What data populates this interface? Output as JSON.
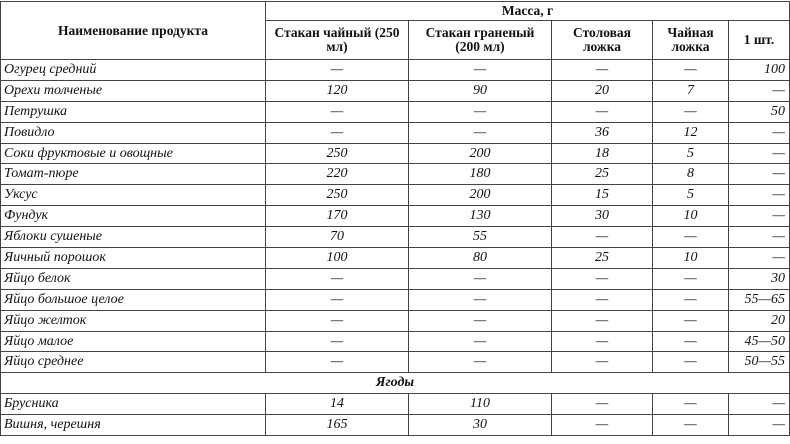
{
  "header": {
    "product_col": "Наименование продукта",
    "mass_group": "Масса, г",
    "columns": [
      "Стакан чайный (250 мл)",
      "Стакан граненый (200 мл)",
      "Столовая ложка",
      "Чайная ложка",
      "1 шт."
    ]
  },
  "rows": [
    {
      "name": "Огурец средний",
      "values": [
        "—",
        "—",
        "—",
        "—",
        "100"
      ]
    },
    {
      "name": "Орехи толченые",
      "values": [
        "120",
        "90",
        "20",
        "7",
        "—"
      ]
    },
    {
      "name": "Петрушка",
      "values": [
        "—",
        "—",
        "—",
        "—",
        "50"
      ]
    },
    {
      "name": "Повидло",
      "values": [
        "—",
        "—",
        "36",
        "12",
        "—"
      ]
    },
    {
      "name": "Соки фруктовые и овощные",
      "values": [
        "250",
        "200",
        "18",
        "5",
        "—"
      ]
    },
    {
      "name": "Томат-пюре",
      "values": [
        "220",
        "180",
        "25",
        "8",
        "—"
      ]
    },
    {
      "name": "Уксус",
      "values": [
        "250",
        "200",
        "15",
        "5",
        "—"
      ]
    },
    {
      "name": "Фундук",
      "values": [
        "170",
        "130",
        "30",
        "10",
        "—"
      ]
    },
    {
      "name": "Яблоки сушеные",
      "values": [
        "70",
        "55",
        "—",
        "—",
        "—"
      ]
    },
    {
      "name": "Яичный порошок",
      "values": [
        "100",
        "80",
        "25",
        "10",
        "—"
      ]
    },
    {
      "name": "Яйцо белок",
      "values": [
        "—",
        "—",
        "—",
        "—",
        "30"
      ]
    },
    {
      "name": "Яйцо большое целое",
      "values": [
        "—",
        "—",
        "—",
        "—",
        "55—65"
      ]
    },
    {
      "name": "Яйцо желток",
      "values": [
        "—",
        "—",
        "—",
        "—",
        "20"
      ]
    },
    {
      "name": "Яйцо малое",
      "values": [
        "—",
        "—",
        "—",
        "—",
        "45—50"
      ]
    },
    {
      "name": "Яйцо среднее",
      "values": [
        "—",
        "—",
        "—",
        "—",
        "50—55"
      ]
    }
  ],
  "section": "Ягоды",
  "section_rows": [
    {
      "name": "Брусника",
      "values": [
        "14",
        "110",
        "—",
        "—",
        "—"
      ]
    },
    {
      "name": "Вишня, черешня",
      "values": [
        "165",
        "30",
        "—",
        "—",
        "—"
      ]
    }
  ]
}
